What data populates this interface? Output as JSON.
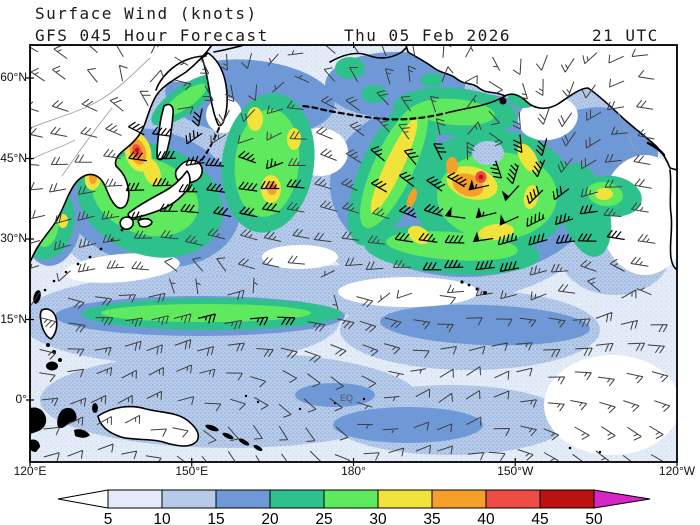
{
  "title": {
    "product": "Surface Wind (knots)",
    "model_run": "GFS 045 Hour Forecast",
    "valid_date": "Thu 05 Feb 2026",
    "valid_time": "21 UTC"
  },
  "map": {
    "equator_label": "EQ",
    "lat_ticks": [
      {
        "label": "60°N",
        "deg": 60
      },
      {
        "label": "45°N",
        "deg": 45
      },
      {
        "label": "30°N",
        "deg": 30
      },
      {
        "label": "15°N",
        "deg": 15
      },
      {
        "label": "0°",
        "deg": 0
      }
    ],
    "lon_ticks": [
      {
        "label": "120°E",
        "deg": 120
      },
      {
        "label": "150°E",
        "deg": 150
      },
      {
        "label": "180°",
        "deg": 180
      },
      {
        "label": "150°W",
        "deg": 210
      },
      {
        "label": "120°W",
        "deg": 240
      }
    ]
  },
  "colorbar": {
    "unit": "knots",
    "tick_values": [
      5,
      10,
      15,
      20,
      25,
      30,
      35,
      40,
      45,
      50
    ],
    "segment_colors": [
      "#e2ebf7",
      "#b5cbe9",
      "#6f99d6",
      "#2fc18c",
      "#5ee95e",
      "#f2e23c",
      "#f6a02b",
      "#ee4d44",
      "#bd1010"
    ],
    "below_min_color": "#ffffff",
    "above_max_color": "#d826c6"
  }
}
